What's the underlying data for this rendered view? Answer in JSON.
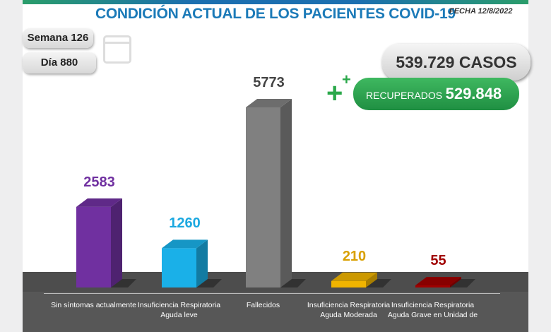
{
  "header": {
    "title": "CONDICIÓN ACTUAL DE LOS PACIENTES COVID-19",
    "fecha": "FECHA 12/8/2022"
  },
  "semana": "Semana 126",
  "dia": "Día 880",
  "casos": "539.729 CASOS",
  "recuperados": {
    "label": "RECUPERADOS",
    "value": "529.848"
  },
  "colors": {
    "purple": "#7030a0",
    "cyan": "#1ab0e8",
    "gray": "#808080",
    "yellow": "#f0b400",
    "red": "#a00000"
  },
  "chart_data": {
    "type": "bar",
    "categories": [
      "Sin síntomas actualmente",
      "Insuficiencia Respiratoria Aguda leve",
      "Fallecidos",
      "Insuficiencia Respiratoria Aguda Moderada",
      "Insuficiencia Respiratoria Aguda Grave en Unidad de"
    ],
    "values": [
      2583,
      1260,
      5773,
      210,
      55
    ],
    "value_labels": [
      "2583",
      "1260",
      "5773",
      "210",
      "55"
    ],
    "colors": [
      "#7030a0",
      "#1ab0e8",
      "#808080",
      "#f0b400",
      "#a00000"
    ],
    "label_colors": [
      "#7030a0",
      "#1aa8e0",
      "#444444",
      "#d9a000",
      "#a00000"
    ]
  }
}
